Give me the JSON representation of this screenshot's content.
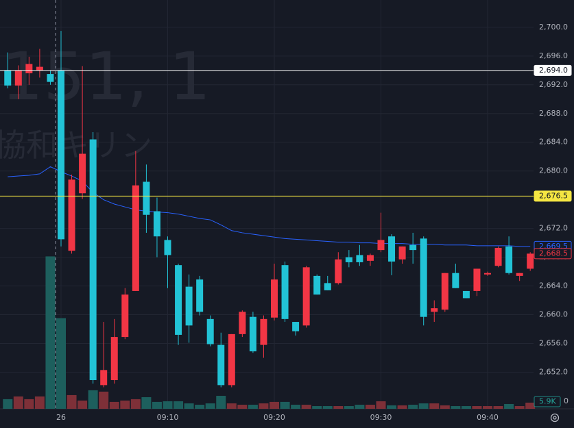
{
  "chart_data": {
    "type": "candlestick",
    "watermark": "151, 1",
    "watermark_name": "協和キリン",
    "categories": [
      null,
      null,
      null,
      null,
      null,
      "26",
      null,
      null,
      null,
      null,
      null,
      null,
      null,
      null,
      null,
      "09:10",
      null,
      null,
      null,
      null,
      null,
      null,
      null,
      null,
      null,
      "09:20",
      null,
      null,
      null,
      null,
      null,
      null,
      null,
      null,
      null,
      "09:30",
      null,
      null,
      null,
      null,
      null,
      null,
      null,
      null,
      null,
      "09:40",
      null,
      null,
      null,
      null
    ],
    "open": [
      2694.0,
      2691.9,
      2693.6,
      2694.0,
      2693.5,
      2694.0,
      2668.9,
      2676.9,
      2684.4,
      2650.2,
      2650.9,
      2656.9,
      2663.3,
      2678.5,
      2674.4,
      2670.4,
      2666.9,
      2663.9,
      2664.9,
      2659.4,
      2655.8,
      2650.2,
      2657.3,
      2659.7,
      2655.8,
      2659.6,
      2666.9,
      2659.0,
      2658.5,
      2665.4,
      2664.4,
      2664.4,
      2668.0,
      2668.3,
      2667.5,
      2669.0,
      2670.9,
      2667.7,
      2669.7,
      2670.6,
      2660.4,
      2660.7,
      2665.8,
      2663.3,
      2663.3,
      2665.6,
      2666.8,
      2669.5,
      2665.4,
      2666.4
    ],
    "high": [
      2696.5,
      2694.7,
      2695.9,
      2697.0,
      2694.0,
      2699.5,
      2679.5,
      2694.6,
      2685.4,
      2659.0,
      2659.4,
      2663.7,
      2682.8,
      2680.9,
      2676.3,
      2670.9,
      2667.1,
      2665.6,
      2665.4,
      2659.9,
      2657.5,
      2657.3,
      2660.6,
      2660.4,
      2659.9,
      2667.1,
      2667.4,
      2659.0,
      2666.8,
      2665.6,
      2665.4,
      2668.7,
      2669.0,
      2669.7,
      2668.5,
      2674.2,
      2671.2,
      2669.5,
      2671.4,
      2670.9,
      2662.0,
      2665.8,
      2667.1,
      2663.3,
      2666.4,
      2666.0,
      2669.5,
      2670.9,
      2665.8,
      2668.7
    ],
    "low": [
      2691.5,
      2690.0,
      2692.0,
      2693.0,
      2692.0,
      2669.5,
      2668.5,
      2676.1,
      2650.4,
      2649.9,
      2650.4,
      2656.6,
      2663.3,
      2671.4,
      2668.0,
      2663.7,
      2655.8,
      2656.1,
      2659.9,
      2655.6,
      2649.9,
      2649.9,
      2656.9,
      2654.7,
      2654.0,
      2659.2,
      2659.0,
      2657.1,
      2658.2,
      2662.8,
      2663.4,
      2664.2,
      2666.6,
      2666.8,
      2666.8,
      2668.7,
      2665.5,
      2667.1,
      2667.1,
      2658.5,
      2659.0,
      2660.4,
      2663.7,
      2662.3,
      2662.6,
      2665.4,
      2666.6,
      2665.6,
      2664.7,
      2666.1
    ],
    "close": [
      2691.9,
      2694.0,
      2694.9,
      2694.5,
      2692.4,
      2670.5,
      2678.8,
      2682.4,
      2650.9,
      2652.3,
      2656.9,
      2662.8,
      2678.0,
      2673.9,
      2670.9,
      2668.3,
      2657.2,
      2658.5,
      2660.4,
      2655.9,
      2650.2,
      2657.3,
      2660.4,
      2654.9,
      2659.4,
      2664.9,
      2659.4,
      2657.7,
      2666.6,
      2662.8,
      2663.4,
      2667.7,
      2667.3,
      2667.3,
      2668.3,
      2670.4,
      2667.4,
      2669.5,
      2669.0,
      2659.7,
      2660.9,
      2665.8,
      2663.7,
      2662.3,
      2666.4,
      2665.8,
      2669.3,
      2665.8,
      2665.8,
      2668.5
    ],
    "volume": [
      9200,
      11800,
      9200,
      11800,
      145400,
      86500,
      13100,
      7900,
      17700,
      16400,
      6600,
      7900,
      9200,
      11100,
      6600,
      7200,
      7200,
      5200,
      3900,
      5200,
      12400,
      5200,
      3900,
      3900,
      5200,
      6600,
      6600,
      3900,
      3900,
      2600,
      2600,
      2600,
      2600,
      3900,
      3900,
      7200,
      3300,
      3300,
      3900,
      5200,
      5200,
      3300,
      2600,
      2600,
      2600,
      2600,
      2600,
      4600,
      2600,
      5900
    ],
    "vwap": [
      2679.2,
      2679.3,
      2679.4,
      2679.6,
      2680.6,
      2679.9,
      2679.3,
      2678.6,
      2677.0,
      2676.0,
      2675.4,
      2675.0,
      2674.6,
      2674.4,
      2674.3,
      2674.2,
      2674.0,
      2673.7,
      2673.4,
      2673.2,
      2672.5,
      2671.7,
      2671.4,
      2671.2,
      2671.0,
      2670.8,
      2670.6,
      2670.5,
      2670.4,
      2670.3,
      2670.2,
      2670.1,
      2670.1,
      2670.0,
      2670.0,
      2669.9,
      2669.9,
      2669.9,
      2669.8,
      2669.8,
      2669.8,
      2669.7,
      2669.7,
      2669.7,
      2669.6,
      2669.6,
      2669.6,
      2669.6,
      2669.5,
      2669.5
    ],
    "up_color": "#f23645",
    "down_color": "#22c3d6",
    "vwap_color": "#2962ff",
    "volume_up_color": "#7e3038",
    "volume_down_color": "#1d5f5d",
    "ylim": [
      2646.9,
      2703.8
    ],
    "yticks": [
      {
        "value": 2652,
        "label": "2,652.0"
      },
      {
        "value": 2656,
        "label": "2,656.0"
      },
      {
        "value": 2660,
        "label": "2,660.0"
      },
      {
        "value": 2664,
        "label": "2,664.0"
      },
      {
        "value": 2668,
        "label": "2,668.0"
      },
      {
        "value": 2672,
        "label": "2,672.0"
      },
      {
        "value": 2680,
        "label": "2,680.0"
      },
      {
        "value": 2684,
        "label": "2,684.0"
      },
      {
        "value": 2688,
        "label": "2,688.0"
      },
      {
        "value": 2692,
        "label": "2,692.0"
      },
      {
        "value": 2696,
        "label": "2,696.0"
      },
      {
        "value": 2700,
        "label": "2,700.0"
      }
    ],
    "volume_ylim": [
      0,
      390000
    ],
    "volume_yticks": [
      0
    ],
    "grid": true,
    "price_lines": [
      {
        "value": 2694.0,
        "label": "2,694.0",
        "color": "#ffffff"
      },
      {
        "value": 2676.5,
        "label": "2,676.5",
        "color": "#f5e642"
      }
    ],
    "vwap_label": "2,669.5",
    "last_label": "2,668.5",
    "last_volume_label": "5.9K"
  }
}
